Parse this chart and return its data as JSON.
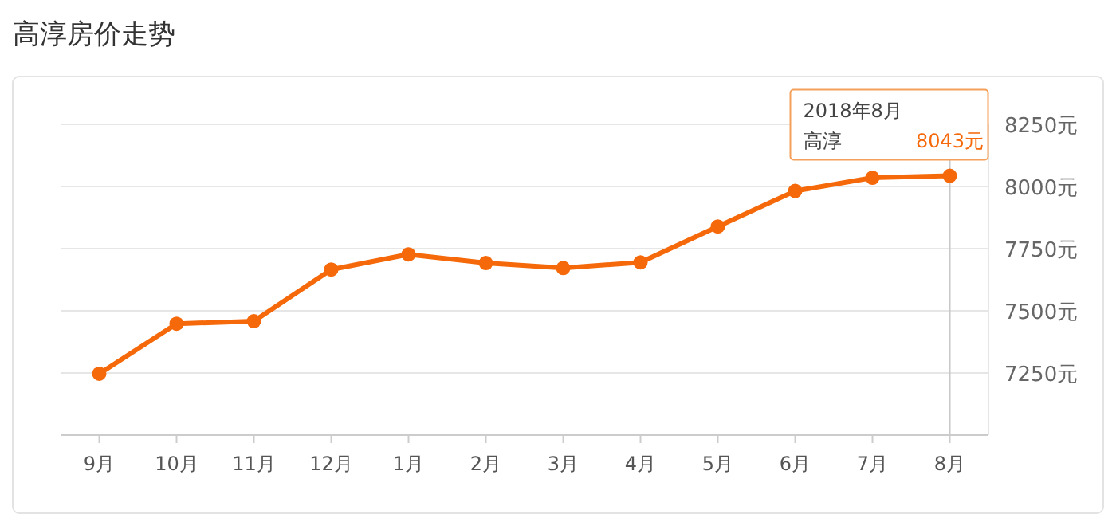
{
  "chart_data": {
    "type": "line",
    "title": "高淳房价走势",
    "categories": [
      "9月",
      "10月",
      "11月",
      "12月",
      "1月",
      "2月",
      "3月",
      "4月",
      "5月",
      "6月",
      "7月",
      "8月"
    ],
    "series": [
      {
        "name": "高淳",
        "color": "#f5690a",
        "values": [
          7247,
          7448,
          7458,
          7666,
          7727,
          7692,
          7672,
          7695,
          7839,
          7982,
          8035,
          8043
        ],
        "value_labels": [
          null,
          null,
          null,
          null,
          null,
          null,
          null,
          null,
          null,
          null,
          null,
          "8043元"
        ]
      }
    ],
    "ylim": [
      7000,
      8250
    ],
    "yticks": [
      {
        "value": 7250,
        "label": "7250元"
      },
      {
        "value": 7500,
        "label": "7500元"
      },
      {
        "value": 7750,
        "label": "7750元"
      },
      {
        "value": 8000,
        "label": "8000元"
      },
      {
        "value": 8250,
        "label": "8250元"
      }
    ],
    "grid": "y",
    "marker": "circle",
    "line_style": "solid",
    "ref_lines": [
      {
        "axis": "x",
        "value": "8月",
        "color": "#c8c8c8"
      }
    ],
    "annotations": [
      "2018年8月"
    ]
  }
}
